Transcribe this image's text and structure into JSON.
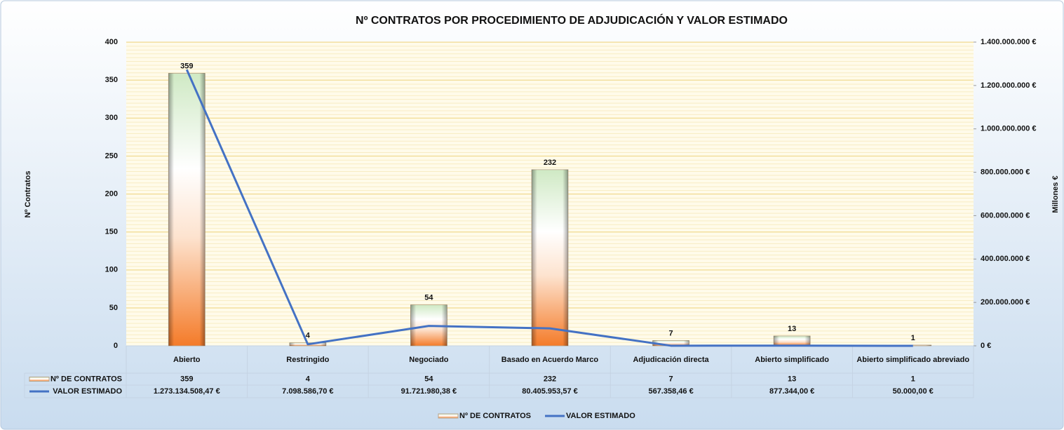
{
  "chart_data": {
    "type": "bar",
    "title": "Nº CONTRATOS POR PROCEDIMIENTO DE ADJUDICACIÓN Y VALOR ESTIMADO",
    "y_label": "Nº Contratos",
    "y2_label": "Millones €",
    "categories": [
      "Abierto",
      "Restringido",
      "Negociado",
      "Basado en Acuerdo Marco",
      "Adjudicación directa",
      "Abierto simplificado",
      "Abierto simplificado abreviado"
    ],
    "series": [
      {
        "name": "Nº DE CONTRATOS",
        "type": "bar",
        "values": [
          359,
          4,
          54,
          232,
          7,
          13,
          1
        ]
      },
      {
        "name": "VALOR ESTIMADO",
        "type": "line",
        "axis": "y2",
        "color": "#4472c4",
        "values": [
          1273134508.47,
          7098586.7,
          91721980.38,
          80405953.57,
          567358.46,
          877344.0,
          50000.0
        ],
        "value_labels": [
          "1.273.134.508,47 €",
          "7.098.586,70 €",
          "91.721.980,38 €",
          "80.405.953,57 €",
          "567.358,46 €",
          "877.344,00 €",
          "50.000,00 €"
        ]
      }
    ],
    "ylim": [
      0,
      400
    ],
    "yticks": [
      0,
      50,
      100,
      150,
      200,
      250,
      300,
      350,
      400
    ],
    "y2lim": [
      0,
      1400000000
    ],
    "y2ticks": [
      {
        "value": 0,
        "label": "0 €"
      },
      {
        "value": 200000000,
        "label": "200.000.000 €"
      },
      {
        "value": 400000000,
        "label": "400.000.000 €"
      },
      {
        "value": 600000000,
        "label": "600.000.000 €"
      },
      {
        "value": 800000000,
        "label": "800.000.000 €"
      },
      {
        "value": 1000000000,
        "label": "1.000.000.000 €"
      },
      {
        "value": 1200000000,
        "label": "1.200.000.000 €"
      },
      {
        "value": 1400000000,
        "label": "1.400.000.000 €"
      }
    ],
    "grid": true,
    "legend": "bottom"
  }
}
